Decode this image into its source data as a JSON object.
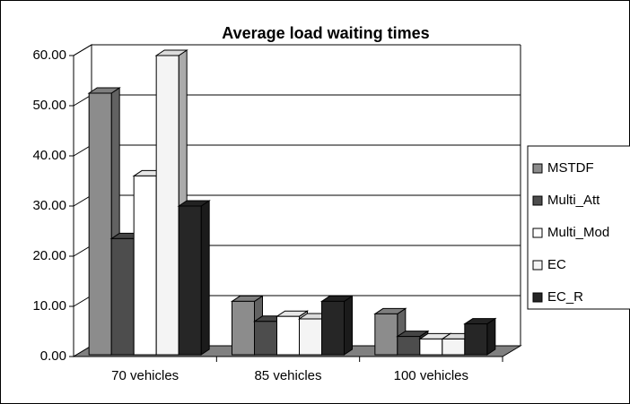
{
  "chart_data": {
    "type": "bar3d",
    "title": "Average load waiting times",
    "categories": [
      "70 vehicles",
      "85 vehicles",
      "100 vehicles"
    ],
    "series": [
      {
        "name": "MSTDF",
        "color": "#8c8c8c",
        "values": [
          52.5,
          11,
          8.5
        ]
      },
      {
        "name": "Multi_Att",
        "color": "#4d4d4d",
        "values": [
          23.5,
          7,
          4
        ]
      },
      {
        "name": "Multi_Mod",
        "color": "#ffffff",
        "values": [
          36,
          8,
          3.5
        ]
      },
      {
        "name": "EC",
        "color": "#f4f4f4",
        "values": [
          60,
          7.5,
          3.5
        ]
      },
      {
        "name": "EC_R",
        "color": "#262626",
        "values": [
          30,
          11,
          6.5
        ]
      }
    ],
    "ylim": [
      0,
      60
    ],
    "yticks": [
      {
        "value": 0,
        "label": "0.00"
      },
      {
        "value": 10,
        "label": "10.00"
      },
      {
        "value": 20,
        "label": "20.00"
      },
      {
        "value": 30,
        "label": "30.00"
      },
      {
        "value": 40,
        "label": "40.00"
      },
      {
        "value": 50,
        "label": "50.00"
      },
      {
        "value": 60,
        "label": "60.00"
      }
    ],
    "grid": true,
    "legend": "right"
  }
}
